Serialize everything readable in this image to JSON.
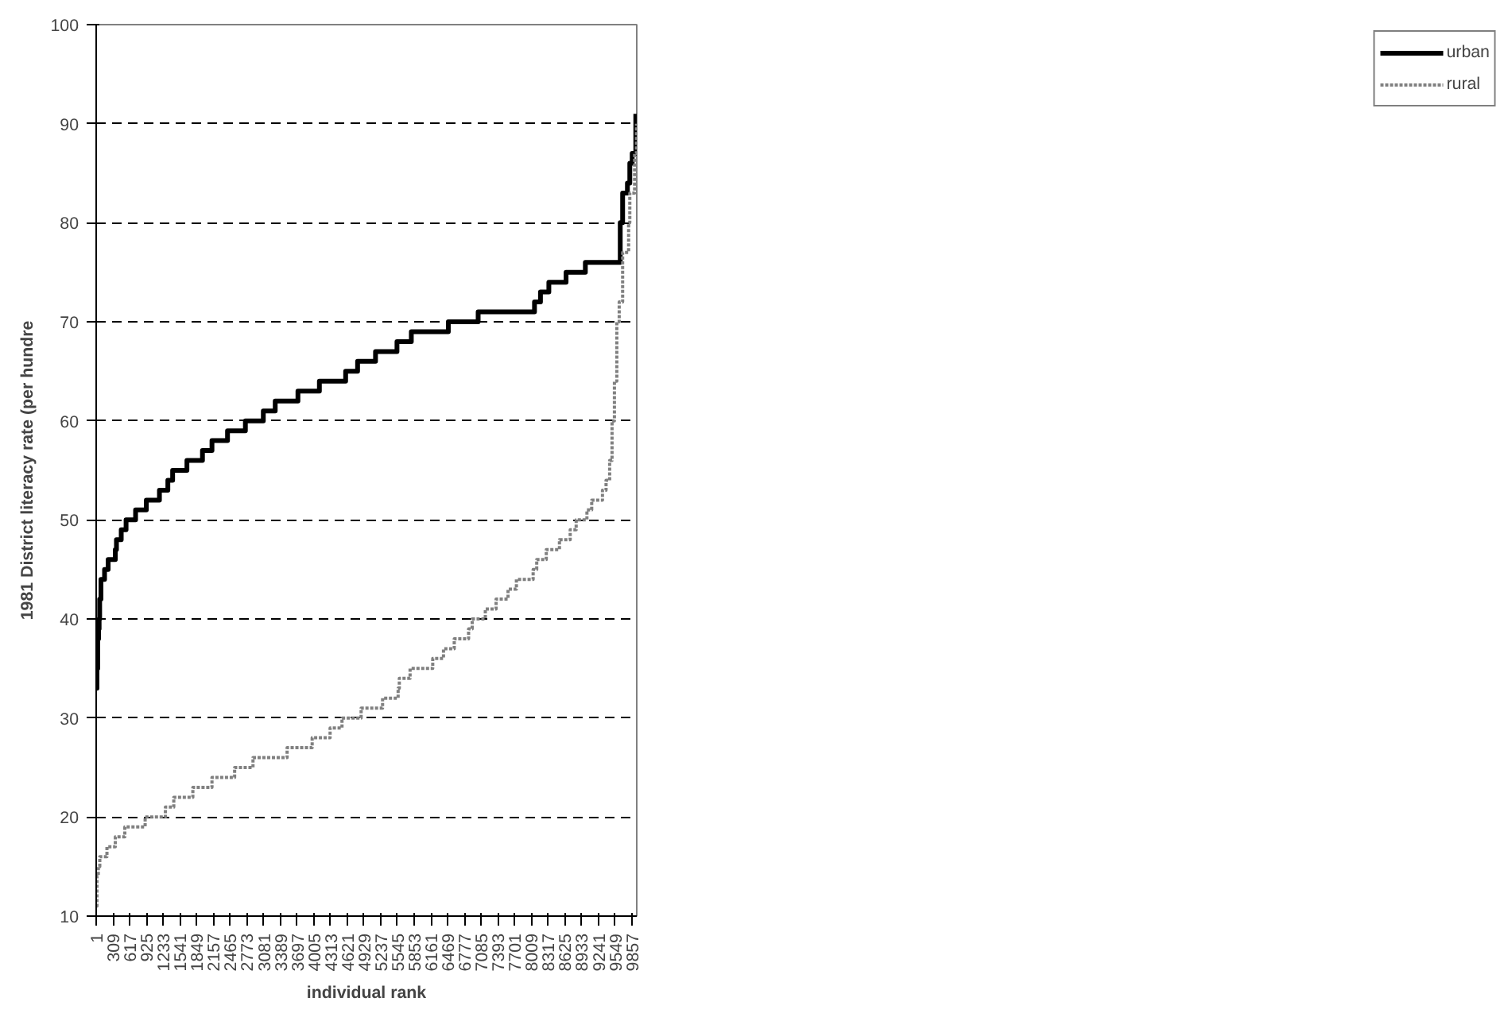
{
  "chart_data": {
    "type": "step",
    "xlabel": "individual rank",
    "ylabel": "1981 District literacy rate (per hundre",
    "xlim": [
      1,
      9950
    ],
    "ylim": [
      10,
      100
    ],
    "xticks": [
      1,
      309,
      617,
      925,
      1233,
      1541,
      1849,
      2157,
      2465,
      2773,
      3081,
      3389,
      3697,
      4005,
      4313,
      4621,
      4929,
      5237,
      5545,
      5853,
      6161,
      6469,
      6777,
      7085,
      7393,
      7701,
      8009,
      8317,
      8625,
      8933,
      9241,
      9549,
      9857
    ],
    "yticks": [
      10,
      20,
      30,
      40,
      50,
      60,
      70,
      80,
      90,
      100
    ],
    "grid": "y",
    "legend": "right",
    "series": [
      {
        "name": "urban",
        "color": "#000000",
        "line_style": "solid",
        "x": [
          1,
          15,
          30,
          45,
          55,
          65,
          89,
          155,
          221,
          353,
          374,
          462,
          551,
          726,
          924,
          1165,
          1320,
          1408,
          1671,
          1957,
          2132,
          2418,
          2747,
          3077,
          3296,
          3714,
          4109,
          4592,
          4812,
          5142,
          5537,
          5801,
          6482,
          7031,
          8068,
          8178,
          8332,
          8649,
          9004,
          9646,
          9690,
          9778,
          9822,
          9866,
          9932
        ],
        "values": [
          33,
          35,
          38,
          39,
          40,
          42,
          44,
          45,
          46,
          47,
          48,
          49,
          50,
          51,
          52,
          53,
          54,
          55,
          56,
          57,
          58,
          59,
          60,
          61,
          62,
          63,
          64,
          65,
          66,
          67,
          68,
          69,
          70,
          71,
          72,
          73,
          74,
          75,
          76,
          80,
          83,
          84,
          86,
          87,
          91
        ]
      },
      {
        "name": "rural",
        "color": "#808080",
        "line_style": "dotted",
        "x": [
          1,
          15,
          40,
          67,
          199,
          353,
          528,
          902,
          1275,
          1429,
          1780,
          2132,
          2549,
          2887,
          3515,
          3976,
          4306,
          4525,
          4877,
          5272,
          5558,
          5580,
          5778,
          6195,
          6393,
          6591,
          6855,
          6921,
          7163,
          7361,
          7581,
          7735,
          8043,
          8109,
          8285,
          8527,
          8725,
          8835,
          9033,
          9121,
          9319,
          9385,
          9451,
          9495,
          9539,
          9583,
          9627,
          9690,
          9800,
          9822,
          9910,
          9945
        ],
        "values": [
          11,
          14,
          15,
          16,
          17,
          18,
          19,
          20,
          21,
          22,
          23,
          24,
          25,
          26,
          27,
          28,
          29,
          30,
          31,
          32,
          33,
          34,
          35,
          36,
          37,
          38,
          39,
          40,
          41,
          42,
          43,
          44,
          45,
          46,
          47,
          48,
          49,
          50,
          51,
          52,
          53,
          54,
          56,
          60,
          64,
          70,
          72,
          77,
          80,
          83,
          87,
          90
        ]
      }
    ]
  }
}
